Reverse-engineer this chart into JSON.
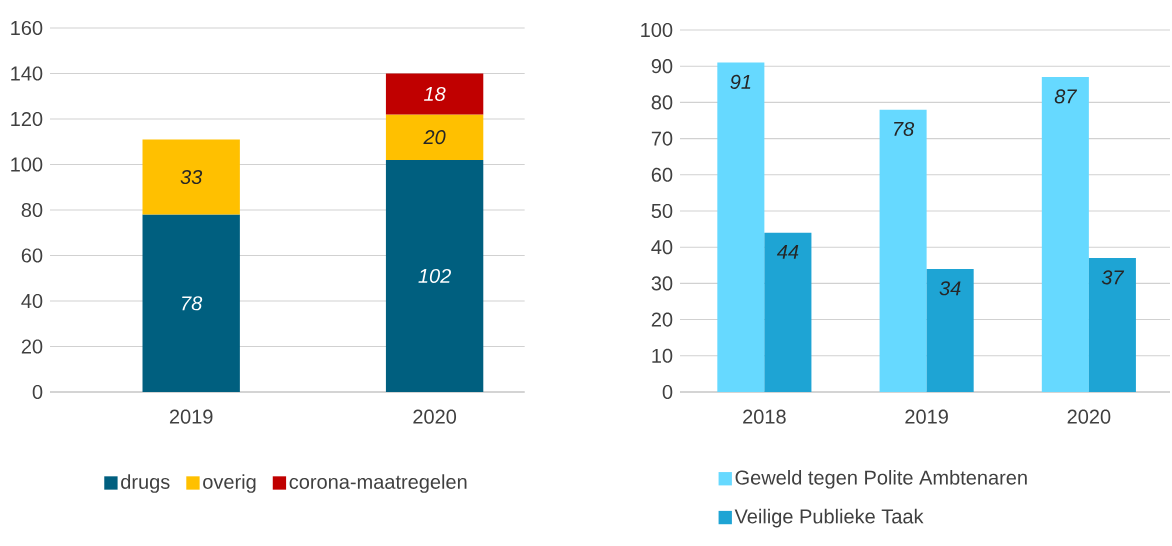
{
  "chart_data": [
    {
      "type": "bar",
      "categories": [
        "2019",
        "2020"
      ],
      "stacked": true,
      "series": [
        {
          "name": "drugs",
          "color": "#005f7f",
          "values": [
            78,
            102
          ]
        },
        {
          "name": "overig",
          "color": "#ffc000",
          "values": [
            33,
            20
          ]
        },
        {
          "name": "corona-maatregelen",
          "color": "#c00000",
          "values": [
            null,
            18
          ]
        }
      ],
      "ylim": [
        0,
        160
      ],
      "yticks": [
        0,
        20,
        40,
        60,
        80,
        100,
        120,
        140,
        160
      ],
      "grid": "y",
      "legend": "bottom",
      "data_labels": true
    },
    {
      "type": "bar",
      "categories": [
        "2018",
        "2019",
        "2020"
      ],
      "series": [
        {
          "name": "Geweld tegen Polite Ambtenaren",
          "color": "#66d9ff",
          "values": [
            91,
            78,
            87
          ]
        },
        {
          "name": "Veilige Publieke Taak",
          "color": "#1ea4d4",
          "values": [
            44,
            34,
            37
          ]
        }
      ],
      "ylim": [
        0,
        100
      ],
      "yticks": [
        0,
        10,
        20,
        30,
        40,
        50,
        60,
        70,
        80,
        90,
        100
      ],
      "grid": "y",
      "legend": "bottom",
      "data_labels": true
    }
  ]
}
